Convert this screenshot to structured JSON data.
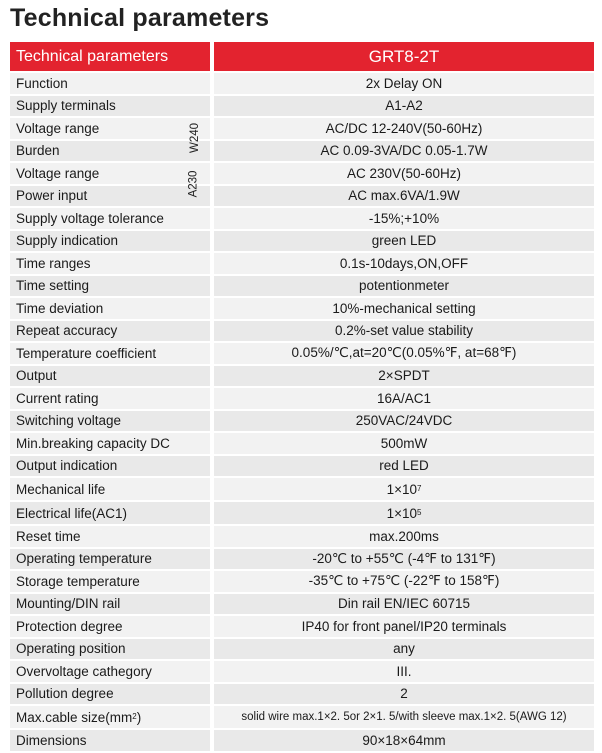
{
  "title": "Technical parameters",
  "header": {
    "left": "Technical parameters",
    "right": "GRT8-2T"
  },
  "side_labels": {
    "w240": "W240",
    "a230": "A230"
  },
  "rows": [
    {
      "label": "Function",
      "value": "2x Delay ON"
    },
    {
      "label": "Supply terminals",
      "value": "A1-A2"
    },
    {
      "label": "Voltage range",
      "value": "AC/DC 12-240V(50-60Hz)"
    },
    {
      "label": "Burden",
      "value": "AC 0.09-3VA/DC 0.05-1.7W"
    },
    {
      "label": "Voltage range",
      "value": "AC 230V(50-60Hz)"
    },
    {
      "label": "Power input",
      "value": "AC max.6VA/1.9W"
    },
    {
      "label": "Supply voltage tolerance",
      "value": "-15%;+10%"
    },
    {
      "label": "Supply indication",
      "value": "green LED"
    },
    {
      "label": "Time ranges",
      "value": "0.1s-10days,ON,OFF"
    },
    {
      "label": "Time setting",
      "value": "potentionmeter"
    },
    {
      "label": "Time deviation",
      "value": "10%-mechanical setting"
    },
    {
      "label": "Repeat accuracy",
      "value": "0.2%-set value stability"
    },
    {
      "label": "Temperature coefficient",
      "value": "0.05%/℃,at=20℃(0.05%℉, at=68℉)"
    },
    {
      "label": "Output",
      "value": "2×SPDT"
    },
    {
      "label": "Current rating",
      "value": "16A/AC1"
    },
    {
      "label": "Switching voltage",
      "value": "250VAC/24VDC"
    },
    {
      "label": "Min.breaking capacity DC",
      "value": "500mW"
    },
    {
      "label": "Output indication",
      "value": "red LED"
    },
    {
      "label": "Mechanical life",
      "value": "1×10",
      "sup": "7"
    },
    {
      "label": "Electrical life(AC1)",
      "value": "1×10",
      "sup": "5"
    },
    {
      "label": "Reset time",
      "value": "max.200ms"
    },
    {
      "label": "Operating temperature",
      "value": "-20℃ to +55℃ (-4℉ to 131℉)"
    },
    {
      "label": "Storage temperature",
      "value": "-35℃ to +75℃ (-22℉ to 158℉)"
    },
    {
      "label": "Mounting/DIN rail",
      "value": "Din rail EN/IEC 60715"
    },
    {
      "label": "Protection degree",
      "value": "IP40 for front panel/IP20 terminals"
    },
    {
      "label": "Operating position",
      "value": "any"
    },
    {
      "label": "Overvoltage cathegory",
      "value": "III."
    },
    {
      "label": "Pollution degree",
      "value": "2"
    },
    {
      "label": "Max.cable size(mm",
      "label_sup": "2",
      "label_tail": ")",
      "value": "solid wire max.1×2. 5or 2×1. 5/with sleeve max.1×2. 5(AWG 12)",
      "small": true
    },
    {
      "label": "Dimensions",
      "value": "90×18×64mm"
    }
  ]
}
